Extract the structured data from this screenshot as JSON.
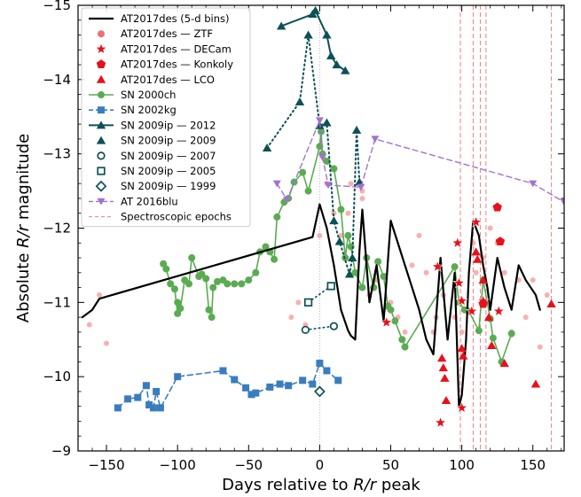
{
  "chart_data": {
    "type": "line",
    "title": "",
    "xlabel": "Days relative to ",
    "xlabel_italic": "R/r",
    "xlabel_tail": " peak",
    "ylabel": "Absolute ",
    "ylabel_italic": "R/r",
    "ylabel_tail": " magnitude",
    "xlim": [
      -170,
      172
    ],
    "ylim": [
      -9,
      -15
    ],
    "xticks": [
      -150,
      -100,
      -50,
      0,
      50,
      100,
      150
    ],
    "xtick_labels": [
      "−150",
      "−100",
      "−50",
      "0",
      "50",
      "100",
      "150"
    ],
    "yticks": [
      -9,
      -10,
      -11,
      -12,
      -13,
      -14,
      -15
    ],
    "ytick_labels": [
      "−9",
      "−10",
      "−11",
      "−12",
      "−13",
      "−14",
      "−15"
    ],
    "legend_position": "top-left",
    "legend": [
      {
        "label": "AT2017des (5-d bins)",
        "marker": "line",
        "color": "#000000"
      },
      {
        "label": "AT2017des — ZTF",
        "marker": "circle",
        "color": "#f08080"
      },
      {
        "label": "AT2017des — DECam",
        "marker": "star",
        "color": "#e8101a"
      },
      {
        "label": "AT2017des — Konkoly",
        "marker": "pentagon",
        "color": "#e8101a"
      },
      {
        "label": "AT2017des — LCO",
        "marker": "triangle-up",
        "color": "#e8101a"
      },
      {
        "label": "SN 2000ch",
        "marker": "circle-line",
        "color": "#5aab52"
      },
      {
        "label": "SN 2002kg",
        "marker": "square-dash",
        "color": "#3a7cc0"
      },
      {
        "label": "SN 2009ip — 2012",
        "marker": "triangle-line",
        "color": "#0c5157"
      },
      {
        "label": "SN 2009ip — 2009",
        "marker": "triangle-up",
        "color": "#0c5157"
      },
      {
        "label": "SN 2009ip — 2007",
        "marker": "circle-open",
        "color": "#0c5157"
      },
      {
        "label": "SN 2009ip — 2005",
        "marker": "square-open",
        "color": "#0c5157"
      },
      {
        "label": "SN 2009ip — 1999",
        "marker": "diamond-open",
        "color": "#0c5157"
      },
      {
        "label": "AT 2016blu",
        "marker": "triangle-down-dash",
        "color": "#a373cc"
      },
      {
        "label": "Spectroscopic epochs",
        "marker": "vline-dash",
        "color": "#f08080"
      }
    ],
    "spectroscopic_epochs": [
      99,
      108,
      113,
      117,
      163
    ],
    "series": [
      {
        "name": "AT2017des (5-d bins)",
        "color": "#000000",
        "style": "line",
        "points": [
          [
            -167,
            -10.8
          ],
          [
            -160,
            -10.9
          ],
          [
            -155,
            -11.05
          ],
          [
            -5,
            -11.88
          ],
          [
            0,
            -12.32
          ],
          [
            5,
            -12.0
          ],
          [
            10,
            -11.5
          ],
          [
            15,
            -10.9
          ],
          [
            20,
            -10.62
          ],
          [
            22,
            -10.55
          ],
          [
            25,
            -10.5
          ],
          [
            28,
            -11.7
          ],
          [
            30,
            -12.25
          ],
          [
            35,
            -11.0
          ],
          [
            40,
            -11.5
          ],
          [
            45,
            -10.75
          ],
          [
            50,
            -12.1
          ],
          [
            55,
            -11.8
          ],
          [
            60,
            -11.5
          ],
          [
            65,
            -11.2
          ],
          [
            70,
            -10.9
          ],
          [
            75,
            -10.5
          ],
          [
            80,
            -10.3
          ],
          [
            85,
            -11.6
          ],
          [
            90,
            -10.5
          ],
          [
            95,
            -11.4
          ],
          [
            98,
            -9.6
          ],
          [
            100,
            -9.75
          ],
          [
            103,
            -10.5
          ],
          [
            105,
            -11.4
          ],
          [
            108,
            -12.1
          ],
          [
            112,
            -11.9
          ],
          [
            115,
            -11.5
          ],
          [
            118,
            -11.2
          ],
          [
            120,
            -10.9
          ],
          [
            125,
            -11.6
          ],
          [
            130,
            -11.2
          ],
          [
            135,
            -10.9
          ],
          [
            140,
            -11.5
          ],
          [
            145,
            -11.3
          ],
          [
            152,
            -11.1
          ],
          [
            155,
            -10.9
          ]
        ]
      },
      {
        "name": "AT2017des — ZTF",
        "color": "#f7b0b0",
        "style": "scatter-circle",
        "points": [
          [
            -162,
            -10.7
          ],
          [
            -155,
            -11.1
          ],
          [
            -150,
            -10.45
          ],
          [
            -20,
            -10.8
          ],
          [
            -15,
            -11.0
          ],
          [
            -10,
            -10.7
          ],
          [
            0,
            -11.9
          ],
          [
            5,
            -12.6
          ],
          [
            10,
            -12.2
          ],
          [
            15,
            -11.9
          ],
          [
            20,
            -12.2
          ],
          [
            22,
            -12.6
          ],
          [
            30,
            -12.5
          ],
          [
            30,
            -12.4
          ],
          [
            35,
            -11.1
          ],
          [
            40,
            -11.3
          ],
          [
            45,
            -10.9
          ],
          [
            50,
            -11.0
          ],
          [
            55,
            -10.8
          ],
          [
            60,
            -10.6
          ],
          [
            65,
            -11.5
          ],
          [
            70,
            -11.9
          ],
          [
            75,
            -11.4
          ],
          [
            80,
            -10.6
          ],
          [
            82,
            -10.8
          ],
          [
            87,
            -11.1
          ],
          [
            95,
            -10.8
          ],
          [
            100,
            -10.6
          ],
          [
            108,
            -11.8
          ],
          [
            110,
            -11.4
          ],
          [
            115,
            -11.6
          ],
          [
            120,
            -12.0
          ],
          [
            125,
            -11.8
          ],
          [
            130,
            -11.4
          ],
          [
            135,
            -10.6
          ],
          [
            140,
            -11.3
          ],
          [
            145,
            -10.8
          ],
          [
            150,
            -11.3
          ],
          [
            155,
            -10.4
          ],
          [
            160,
            -11.1
          ]
        ]
      },
      {
        "name": "AT2017des — DECam",
        "color": "#e8101a",
        "style": "scatter-star",
        "points": [
          [
            83,
            -11.48
          ],
          [
            85,
            -9.38
          ],
          [
            97,
            -11.8
          ],
          [
            98,
            -11.26
          ],
          [
            100,
            -11.02
          ],
          [
            100,
            -9.58
          ],
          [
            107,
            -10.88
          ],
          [
            110,
            -12.08
          ],
          [
            115,
            -11.02
          ],
          [
            126,
            -10.88
          ],
          [
            47,
            -10.73
          ]
        ]
      },
      {
        "name": "AT2017des — Konkoly",
        "color": "#e8101a",
        "style": "scatter-pentagon",
        "points": [
          [
            115,
            -10.98
          ],
          [
            125,
            -12.28
          ],
          [
            127,
            -11.82
          ]
        ]
      },
      {
        "name": "AT2017des — LCO",
        "color": "#e8101a",
        "style": "scatter-triangle",
        "points": [
          [
            86,
            -10.25
          ],
          [
            87,
            -10.12
          ],
          [
            88,
            -9.98
          ],
          [
            89,
            -9.68
          ],
          [
            100,
            -10.38
          ],
          [
            101,
            -10.28
          ],
          [
            110,
            -11.68
          ],
          [
            111,
            -11.58
          ],
          [
            115,
            -11.3
          ],
          [
            119,
            -10.8
          ],
          [
            121,
            -10.42
          ],
          [
            130,
            -10.18
          ],
          [
            152,
            -9.9
          ],
          [
            163,
            -10.98
          ]
        ]
      },
      {
        "name": "SN 2000ch",
        "color": "#5aab52",
        "style": "line-circle",
        "points": [
          [
            -110,
            -11.52
          ],
          [
            -108,
            -11.45
          ],
          [
            -105,
            -11.25
          ],
          [
            -102,
            -11.18
          ],
          [
            -100,
            -10.85
          ],
          [
            -100,
            -11.0
          ],
          [
            -98,
            -10.92
          ],
          [
            -95,
            -11.3
          ],
          [
            -92,
            -11.25
          ],
          [
            -90,
            -11.6
          ],
          [
            -85,
            -11.35
          ],
          [
            -83,
            -11.38
          ],
          [
            -80,
            -11.32
          ],
          [
            -78,
            -10.9
          ],
          [
            -76,
            -10.8
          ],
          [
            -75,
            -11.2
          ],
          [
            -72,
            -11.28
          ],
          [
            -68,
            -11.3
          ],
          [
            -65,
            -11.25
          ],
          [
            -60,
            -11.25
          ],
          [
            -55,
            -11.25
          ],
          [
            -50,
            -11.3
          ],
          [
            -45,
            -11.4
          ],
          [
            -42,
            -11.68
          ],
          [
            -38,
            -11.75
          ],
          [
            -35,
            -11.68
          ],
          [
            -32,
            -11.58
          ],
          [
            -30,
            -12.15
          ],
          [
            -25,
            -12.35
          ],
          [
            -22,
            -12.4
          ],
          [
            -18,
            -12.62
          ],
          [
            -12,
            -12.75
          ],
          [
            -8,
            -12.5
          ],
          [
            0,
            -13.1
          ],
          [
            1,
            -13.3
          ],
          [
            2,
            -13.0
          ],
          [
            5,
            -12.9
          ],
          [
            10,
            -12.8
          ],
          [
            15,
            -12.25
          ],
          [
            18,
            -11.6
          ],
          [
            20,
            -11.9
          ],
          [
            22,
            -11.75
          ],
          [
            25,
            -11.4
          ],
          [
            30,
            -11.2
          ],
          [
            33,
            -11.6
          ],
          [
            38,
            -11.2
          ],
          [
            41,
            -11.55
          ],
          [
            45,
            -11.35
          ],
          [
            48,
            -10.95
          ],
          [
            50,
            -10.9
          ],
          [
            53,
            -10.75
          ],
          [
            58,
            -10.5
          ],
          [
            60,
            -10.4
          ],
          [
            95,
            -11.48
          ],
          [
            98,
            -11.0
          ],
          [
            102,
            -10.9
          ],
          [
            105,
            -10.88
          ],
          [
            112,
            -10.62
          ],
          [
            115,
            -11.3
          ],
          [
            120,
            -10.78
          ],
          [
            122,
            -10.52
          ],
          [
            128,
            -10.2
          ],
          [
            135,
            -10.58
          ]
        ]
      },
      {
        "name": "SN 2002kg",
        "color": "#3a7cc0",
        "style": "dash-square",
        "points": [
          [
            -142,
            -9.58
          ],
          [
            -135,
            -9.7
          ],
          [
            -128,
            -9.72
          ],
          [
            -122,
            -9.88
          ],
          [
            -120,
            -9.62
          ],
          [
            -117,
            -9.58
          ],
          [
            -115,
            -9.8
          ],
          [
            -112,
            -9.58
          ],
          [
            -100,
            -10.0
          ],
          [
            -68,
            -10.08
          ],
          [
            -60,
            -9.96
          ],
          [
            -52,
            -9.85
          ],
          [
            -48,
            -9.76
          ],
          [
            -45,
            -9.78
          ],
          [
            -35,
            -9.86
          ],
          [
            -28,
            -9.9
          ],
          [
            -22,
            -9.88
          ],
          [
            -12,
            -9.95
          ],
          [
            -5,
            -9.9
          ],
          [
            0,
            -10.18
          ],
          [
            5,
            -10.08
          ],
          [
            13,
            -9.95
          ]
        ]
      },
      {
        "name": "SN 2009ip — 2012",
        "color": "#0c5157",
        "style": "line-triangle",
        "points": [
          [
            -27,
            -14.72
          ],
          [
            -5,
            -14.88
          ],
          [
            -3,
            -14.93
          ],
          [
            5,
            -14.6
          ],
          [
            8,
            -14.32
          ],
          [
            12,
            -14.2
          ],
          [
            18,
            -14.12
          ]
        ]
      },
      {
        "name": "SN 2009ip — 2009",
        "color": "#0c5157",
        "style": "dotted-triangle",
        "points": [
          [
            -37,
            -13.08
          ],
          [
            -14,
            -13.7
          ],
          [
            -8,
            -14.6
          ],
          [
            0,
            -13.38
          ],
          [
            5,
            -13.42
          ],
          [
            10,
            -12.1
          ],
          [
            14,
            -11.82
          ],
          [
            21,
            -11.38
          ],
          [
            23,
            -11.6
          ],
          [
            26,
            -13.32
          ],
          [
            28,
            -12.62
          ]
        ]
      },
      {
        "name": "SN 2009ip — 2007",
        "color": "#0c5157",
        "style": "dotted-circle-open",
        "points": [
          [
            -10,
            -10.63
          ],
          [
            10,
            -10.68
          ]
        ]
      },
      {
        "name": "SN 2009ip — 2005",
        "color": "#0c5157",
        "style": "dotted-square-open",
        "points": [
          [
            -8,
            -11.0
          ],
          [
            8,
            -11.22
          ]
        ]
      },
      {
        "name": "SN 2009ip — 1999",
        "color": "#0c5157",
        "style": "diamond-open",
        "points": [
          [
            0,
            -9.8
          ]
        ]
      },
      {
        "name": "AT 2016blu",
        "color": "#a373cc",
        "style": "dash-triangle-down",
        "points": [
          [
            -30,
            -12.6
          ],
          [
            -23,
            -12.38
          ],
          [
            0,
            -13.45
          ],
          [
            2,
            -12.95
          ],
          [
            6,
            -12.58
          ],
          [
            29,
            -12.55
          ],
          [
            39,
            -13.2
          ],
          [
            150,
            -12.6
          ],
          [
            172,
            -12.35
          ]
        ]
      }
    ]
  }
}
